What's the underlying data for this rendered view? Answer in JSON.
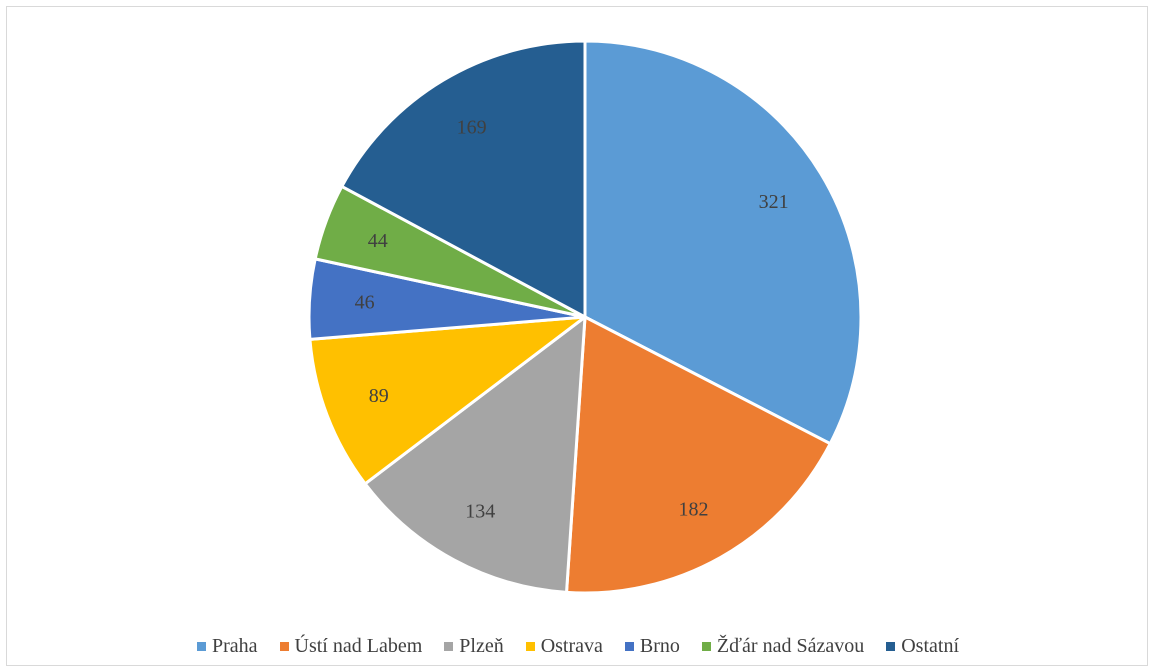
{
  "chart_data": {
    "type": "pie",
    "title": "",
    "categories": [
      "Praha",
      "Ústí nad Labem",
      "Plzeň",
      "Ostrava",
      "Brno",
      "Žďár nad Sázavou",
      "Ostatní"
    ],
    "values": [
      321,
      182,
      134,
      89,
      46,
      44,
      169
    ],
    "data_labels": [
      "321",
      "182",
      "134",
      "89",
      "46",
      "44",
      "169"
    ],
    "colors": [
      "#5b9bd5",
      "#ed7d31",
      "#a5a5a5",
      "#ffc000",
      "#4472c4",
      "#70ad47",
      "#255e91"
    ],
    "start_angle": "12 o'clock",
    "direction": "clockwise",
    "legend_placement": "bottom"
  }
}
